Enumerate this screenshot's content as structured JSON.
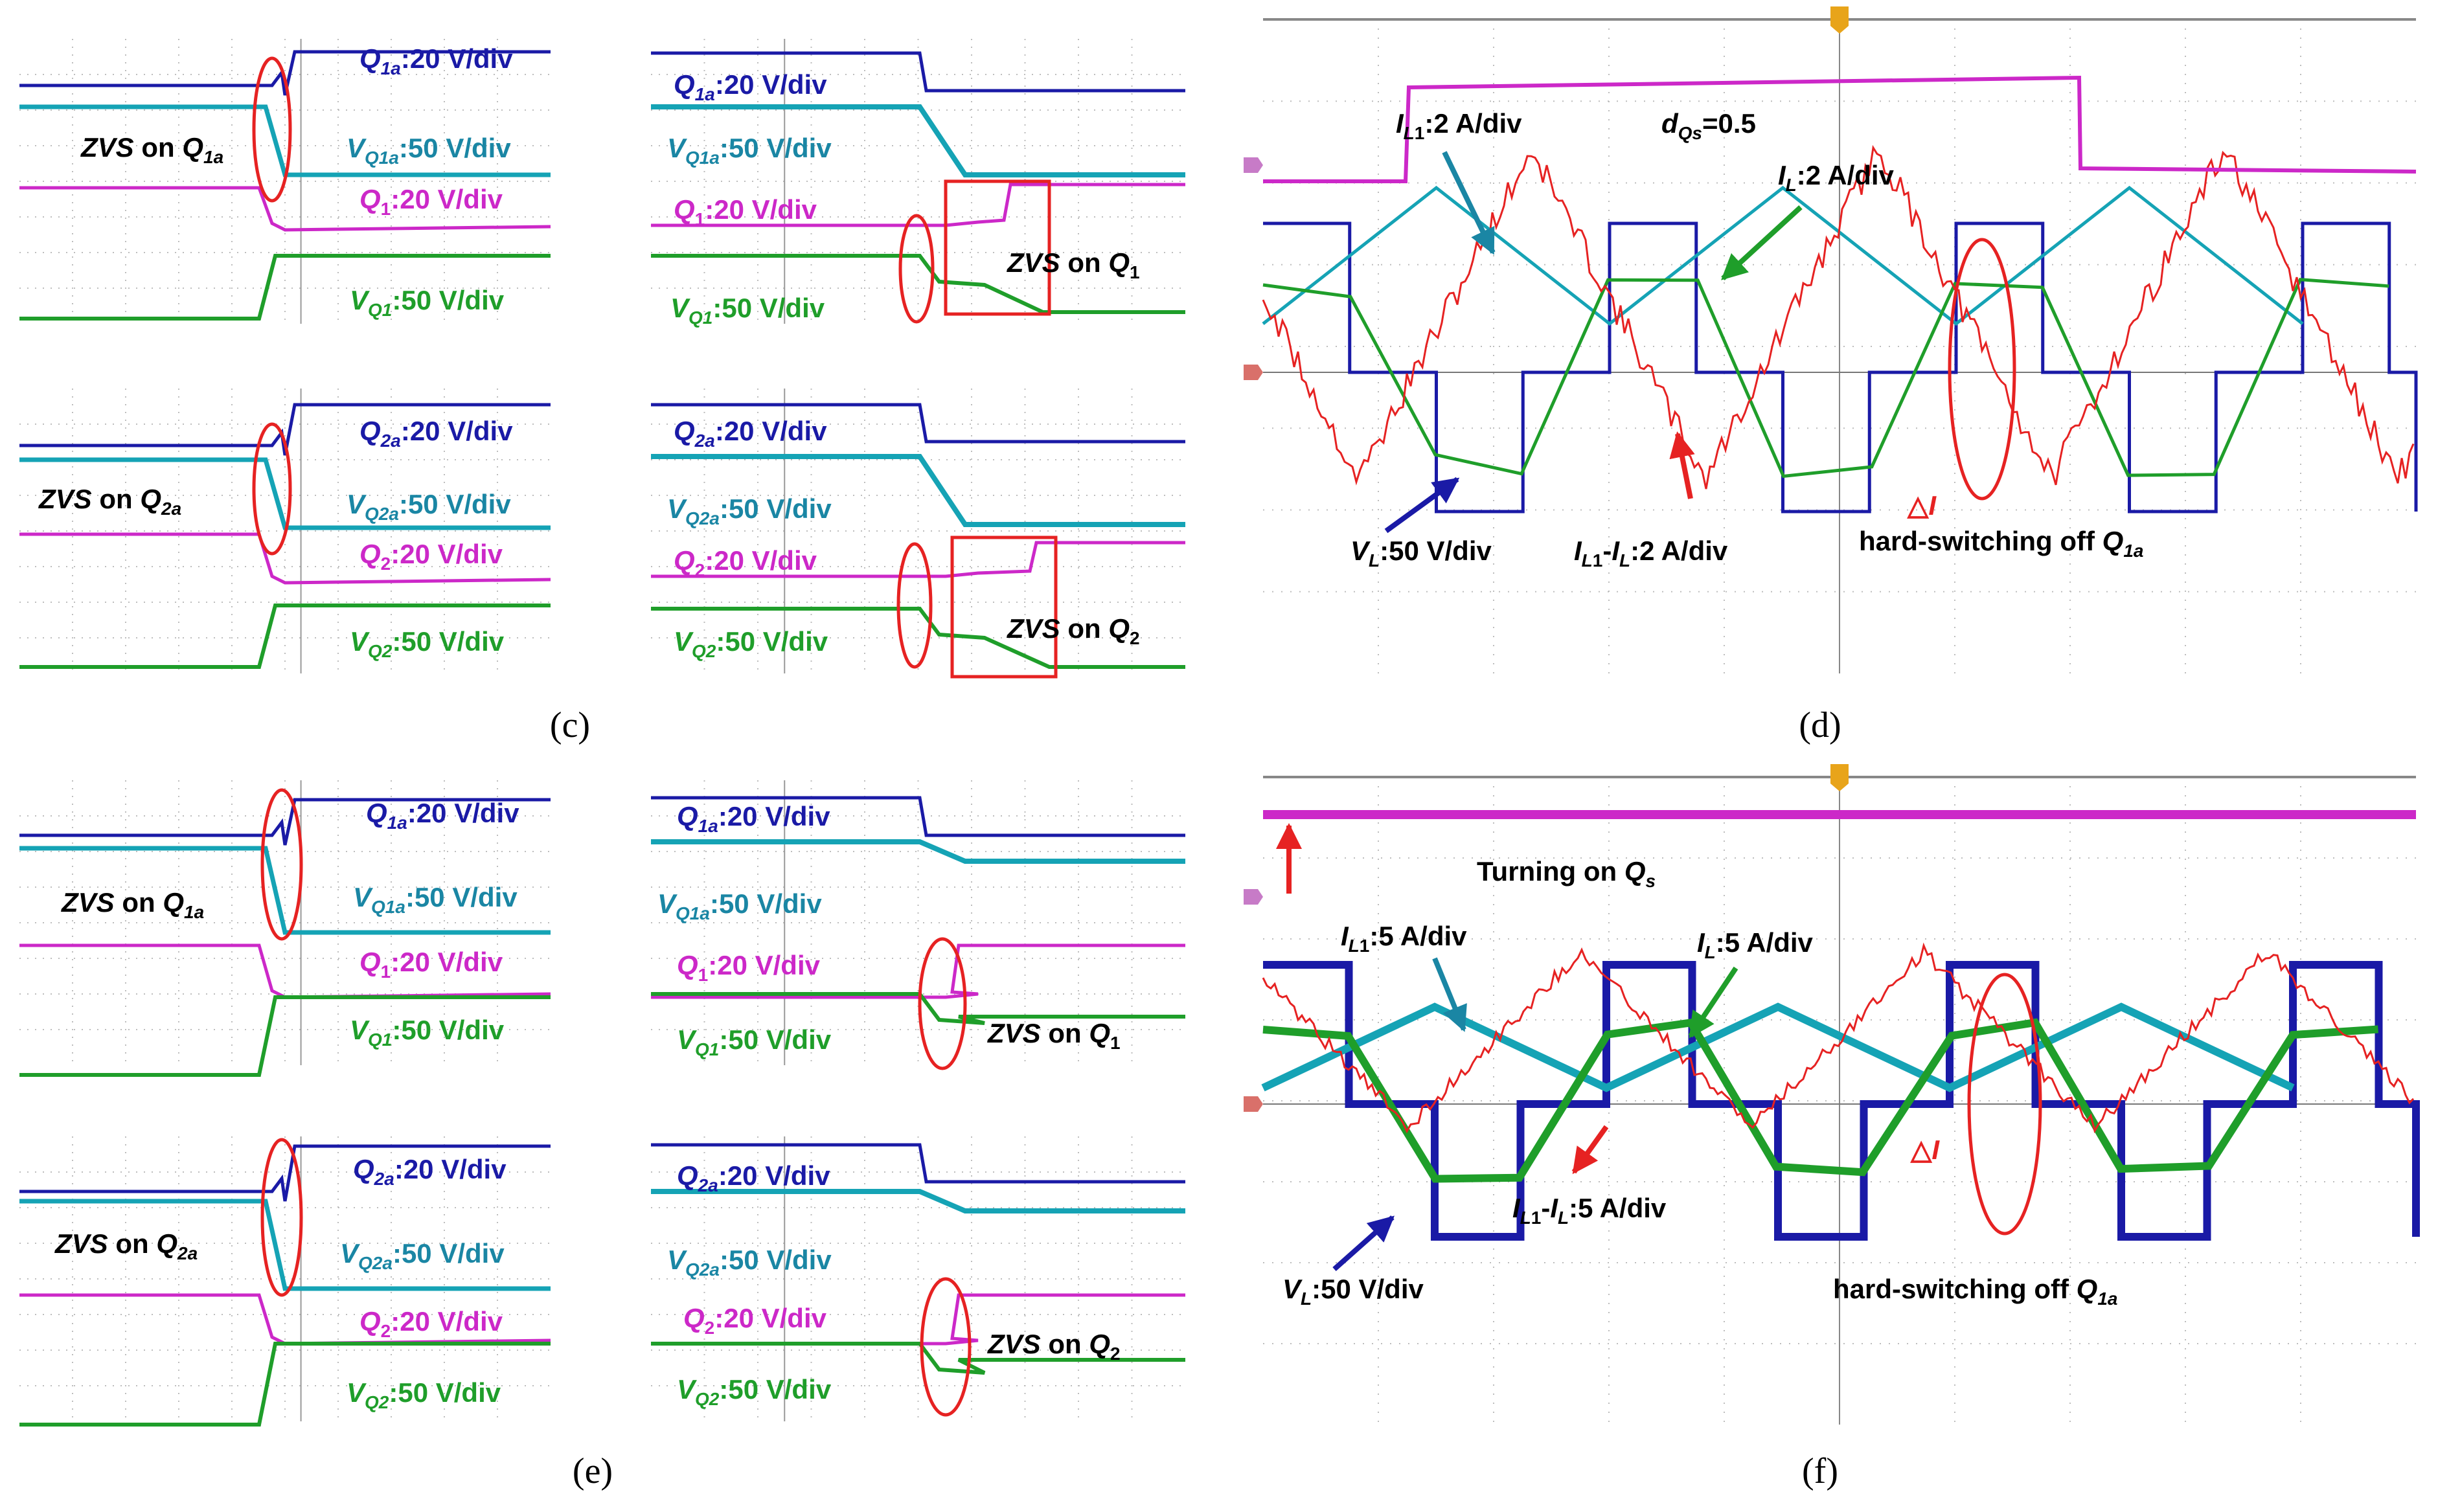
{
  "figure": {
    "captions": {
      "c": "(c)",
      "d": "(d)",
      "e": "(e)",
      "f": "(f)"
    }
  },
  "colors": {
    "blue": "#1a1aa6",
    "cyan": "#15a3b5",
    "magenta": "#cc28c8",
    "green": "#1f9e2a",
    "red": "#e62222",
    "teal": "#1a86a4",
    "grid": "#bdbdbd",
    "frame": "#444444"
  },
  "chart_data": [
    {
      "id": "c-left-top",
      "type": "line",
      "panel": "c",
      "series": [
        {
          "name": "Q1a",
          "label": "Q1a:20 V/div",
          "color": "#1a1aa6"
        },
        {
          "name": "VQ1a",
          "label": "VQ1a:50 V/div",
          "color": "#15a3b5"
        },
        {
          "name": "Q1",
          "label": "Q1:20 V/div",
          "color": "#cc28c8"
        },
        {
          "name": "VQ1",
          "label": "VQ1:50 V/div",
          "color": "#1f9e2a"
        }
      ],
      "annotations": [
        "ZVS on Q1a"
      ]
    },
    {
      "id": "c-right-top",
      "type": "line",
      "panel": "c",
      "series": [
        {
          "name": "Q1a",
          "label": "Q1a:20 V/div",
          "color": "#1a1aa6"
        },
        {
          "name": "VQ1a",
          "label": "VQ1a:50 V/div",
          "color": "#15a3b5"
        },
        {
          "name": "Q1",
          "label": "Q1:20 V/div",
          "color": "#cc28c8"
        },
        {
          "name": "VQ1",
          "label": "VQ1:50 V/div",
          "color": "#1f9e2a"
        }
      ],
      "annotations": [
        "ZVS on Q1"
      ]
    },
    {
      "id": "c-left-bottom",
      "type": "line",
      "panel": "c",
      "series": [
        {
          "name": "Q2a",
          "label": "Q2a:20 V/div",
          "color": "#1a1aa6"
        },
        {
          "name": "VQ2a",
          "label": "VQ2a:50 V/div",
          "color": "#15a3b5"
        },
        {
          "name": "Q2",
          "label": "Q2:20 V/div",
          "color": "#cc28c8"
        },
        {
          "name": "VQ2",
          "label": "VQ2:50 V/div",
          "color": "#1f9e2a"
        }
      ],
      "annotations": [
        "ZVS on Q2a"
      ]
    },
    {
      "id": "c-right-bottom",
      "type": "line",
      "panel": "c",
      "series": [
        {
          "name": "Q2a",
          "label": "Q2a:20 V/div",
          "color": "#1a1aa6"
        },
        {
          "name": "VQ2a",
          "label": "VQ2a:50 V/div",
          "color": "#15a3b5"
        },
        {
          "name": "Q2",
          "label": "Q2:20 V/div",
          "color": "#cc28c8"
        },
        {
          "name": "VQ2",
          "label": "VQ2:50 V/div",
          "color": "#1f9e2a"
        }
      ],
      "annotations": [
        "ZVS on Q2"
      ]
    },
    {
      "id": "d-scope",
      "type": "line",
      "panel": "d",
      "series": [
        {
          "name": "IL1",
          "label": "IL1:2 A/div",
          "color": "#15a3b5"
        },
        {
          "name": "IL",
          "label": "IL:2 A/div",
          "color": "#1f9e2a"
        },
        {
          "name": "VL",
          "label": "VL:50 V/div",
          "color": "#1a1aa6"
        },
        {
          "name": "IL1-IL",
          "label": "IL1-IL:2 A/div",
          "color": "#e62222"
        },
        {
          "name": "Qs",
          "label": "",
          "color": "#cc28c8"
        }
      ],
      "parameter": "dQs=0.5",
      "annotations": [
        "△I",
        "hard-switching off Q1a"
      ]
    },
    {
      "id": "e-left-top",
      "type": "line",
      "panel": "e",
      "series": [
        {
          "name": "Q1a",
          "label": "Q1a:20 V/div",
          "color": "#1a1aa6"
        },
        {
          "name": "VQ1a",
          "label": "VQ1a:50 V/div",
          "color": "#15a3b5"
        },
        {
          "name": "Q1",
          "label": "Q1:20 V/div",
          "color": "#cc28c8"
        },
        {
          "name": "VQ1",
          "label": "VQ1:50 V/div",
          "color": "#1f9e2a"
        }
      ],
      "annotations": [
        "ZVS on Q1a"
      ]
    },
    {
      "id": "e-right-top",
      "type": "line",
      "panel": "e",
      "series": [
        {
          "name": "Q1a",
          "label": "Q1a:20 V/div",
          "color": "#1a1aa6"
        },
        {
          "name": "VQ1a",
          "label": "VQ1a:50 V/div",
          "color": "#15a3b5"
        },
        {
          "name": "Q1",
          "label": "Q1:20 V/div",
          "color": "#cc28c8"
        },
        {
          "name": "VQ1",
          "label": "VQ1:50 V/div",
          "color": "#1f9e2a"
        }
      ],
      "annotations": [
        "ZVS on Q1"
      ]
    },
    {
      "id": "e-left-bottom",
      "type": "line",
      "panel": "e",
      "series": [
        {
          "name": "Q2a",
          "label": "Q2a:20 V/div",
          "color": "#1a1aa6"
        },
        {
          "name": "VQ2a",
          "label": "VQ2a:50 V/div",
          "color": "#15a3b5"
        },
        {
          "name": "Q2",
          "label": "Q2:20 V/div",
          "color": "#cc28c8"
        },
        {
          "name": "VQ2",
          "label": "VQ2:50 V/div",
          "color": "#1f9e2a"
        }
      ],
      "annotations": [
        "ZVS on Q2a"
      ]
    },
    {
      "id": "e-right-bottom",
      "type": "line",
      "panel": "e",
      "series": [
        {
          "name": "Q2a",
          "label": "Q2a:20 V/div",
          "color": "#1a1aa6"
        },
        {
          "name": "VQ2a",
          "label": "VQ2a:50 V/div",
          "color": "#15a3b5"
        },
        {
          "name": "Q2",
          "label": "Q2:20 V/div",
          "color": "#cc28c8"
        },
        {
          "name": "VQ2",
          "label": "VQ2:50 V/div",
          "color": "#1f9e2a"
        }
      ],
      "annotations": [
        "ZVS on Q2"
      ]
    },
    {
      "id": "f-scope",
      "type": "line",
      "panel": "f",
      "series": [
        {
          "name": "IL1",
          "label": "IL1:5 A/div",
          "color": "#15a3b5"
        },
        {
          "name": "IL",
          "label": "IL:5 A/div",
          "color": "#1f9e2a"
        },
        {
          "name": "VL",
          "label": "VL:50 V/div",
          "color": "#1a1aa6"
        },
        {
          "name": "IL1-IL",
          "label": "IL1-IL:5 A/div",
          "color": "#e62222"
        },
        {
          "name": "Qs",
          "label": "",
          "color": "#cc28c8"
        }
      ],
      "annotations": [
        "Turning on Qs",
        "△I",
        "hard-switching off Q1a"
      ]
    }
  ]
}
